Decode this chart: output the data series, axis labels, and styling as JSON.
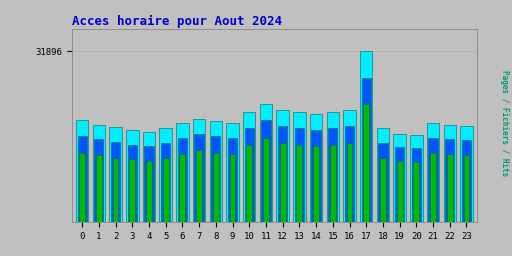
{
  "title": "Acces horaire pour Aout 2024",
  "ylabel": "Pages / Fichiers / Hits",
  "hours": [
    0,
    1,
    2,
    3,
    4,
    5,
    6,
    7,
    8,
    9,
    10,
    11,
    12,
    13,
    14,
    15,
    16,
    17,
    18,
    19,
    20,
    21,
    22,
    23
  ],
  "hits": [
    19000,
    18200,
    17800,
    17200,
    16800,
    17500,
    18500,
    19200,
    18800,
    18500,
    20500,
    22000,
    21000,
    20500,
    20200,
    20500,
    21000,
    31896,
    17500,
    16500,
    16200,
    18500,
    18200,
    18000
  ],
  "files": [
    16000,
    15500,
    15000,
    14500,
    14200,
    14800,
    15800,
    16500,
    16000,
    15800,
    17500,
    19000,
    18000,
    17500,
    17200,
    17500,
    18000,
    27000,
    14800,
    14000,
    13800,
    15800,
    15500,
    15300
  ],
  "pages": [
    13000,
    12500,
    12000,
    11800,
    11500,
    12000,
    12800,
    13500,
    13000,
    12800,
    14500,
    15800,
    14800,
    14500,
    14200,
    14500,
    14800,
    22000,
    12000,
    11500,
    11200,
    13000,
    12800,
    12500
  ],
  "hits_color": "#00eeff",
  "files_color": "#0055ff",
  "pages_color": "#00bb00",
  "background_color": "#c0c0c0",
  "plot_bg_color": "#c0c0c0",
  "title_color": "#0000cc",
  "ylabel_color": "#009977",
  "bar_edge_color": "#006655",
  "ytick_value": 31896,
  "ytick_label": "31896",
  "ylim_max": 36000,
  "figsize": [
    5.12,
    2.56
  ],
  "dpi": 100
}
